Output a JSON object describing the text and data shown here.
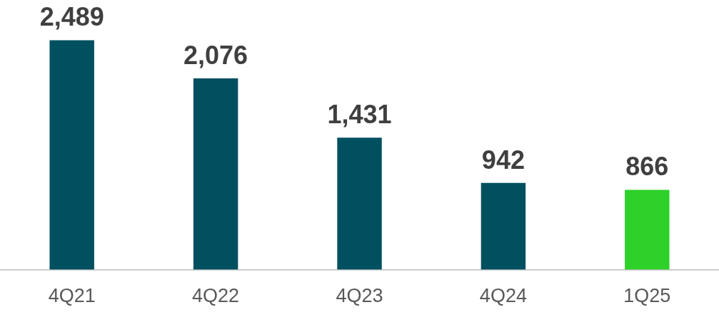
{
  "chart_data": {
    "type": "bar",
    "categories": [
      "4Q21",
      "4Q22",
      "4Q23",
      "4Q24",
      "1Q25"
    ],
    "values": [
      2489,
      2076,
      1431,
      942,
      866
    ],
    "colors": [
      "#00505f",
      "#00505f",
      "#00505f",
      "#00505f",
      "#2ed12a"
    ],
    "value_labels": [
      "2,489",
      "2,076",
      "1,431",
      "942",
      "866"
    ],
    "grid": false,
    "legend": false,
    "tick_labels": "x"
  }
}
